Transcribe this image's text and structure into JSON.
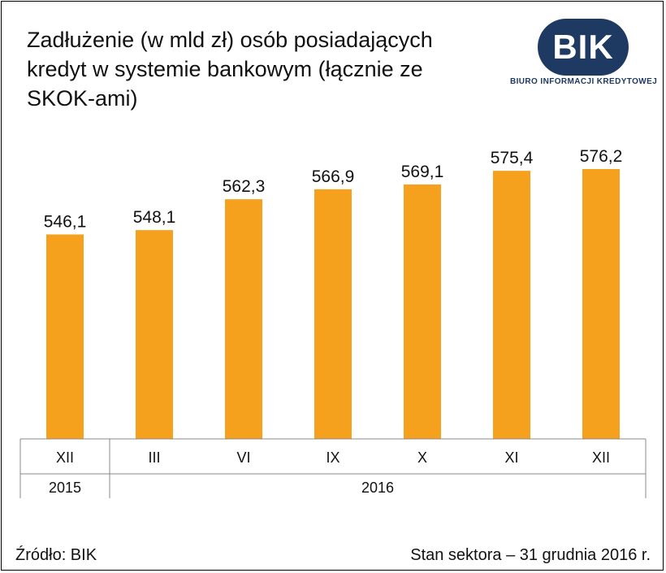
{
  "title": "Zadłużenie (w mld zł) osób posiadających kredyt w systemie bankowym (łącznie ze SKOK-ami)",
  "logo": {
    "mark": "BIK",
    "subtitle": "BIURO INFORMACJI KREDYTOWEJ"
  },
  "footer": {
    "source": "Źródło: BIK",
    "date": "Stan sektora – 31 grudnia 2016 r."
  },
  "colors": {
    "bar": "#f5a11e",
    "logo": "#1e3a63"
  },
  "chart_data": {
    "type": "bar",
    "title": "Zadłużenie (w mld zł) osób posiadających kredyt w systemie bankowym (łącznie ze SKOK-ami)",
    "categories": [
      "XII",
      "III",
      "VI",
      "IX",
      "X",
      "XI",
      "XII"
    ],
    "values": [
      546.1,
      548.1,
      562.3,
      566.9,
      569.1,
      575.4,
      576.2
    ],
    "value_labels": [
      "546,1",
      "548,1",
      "562,3",
      "566,9",
      "569,1",
      "575,4",
      "576,2"
    ],
    "year_groups": [
      {
        "label": "2015",
        "count": 1
      },
      {
        "label": "2016",
        "count": 6
      }
    ],
    "xlabel": "",
    "ylabel": "",
    "grid": false,
    "legend": "none"
  }
}
